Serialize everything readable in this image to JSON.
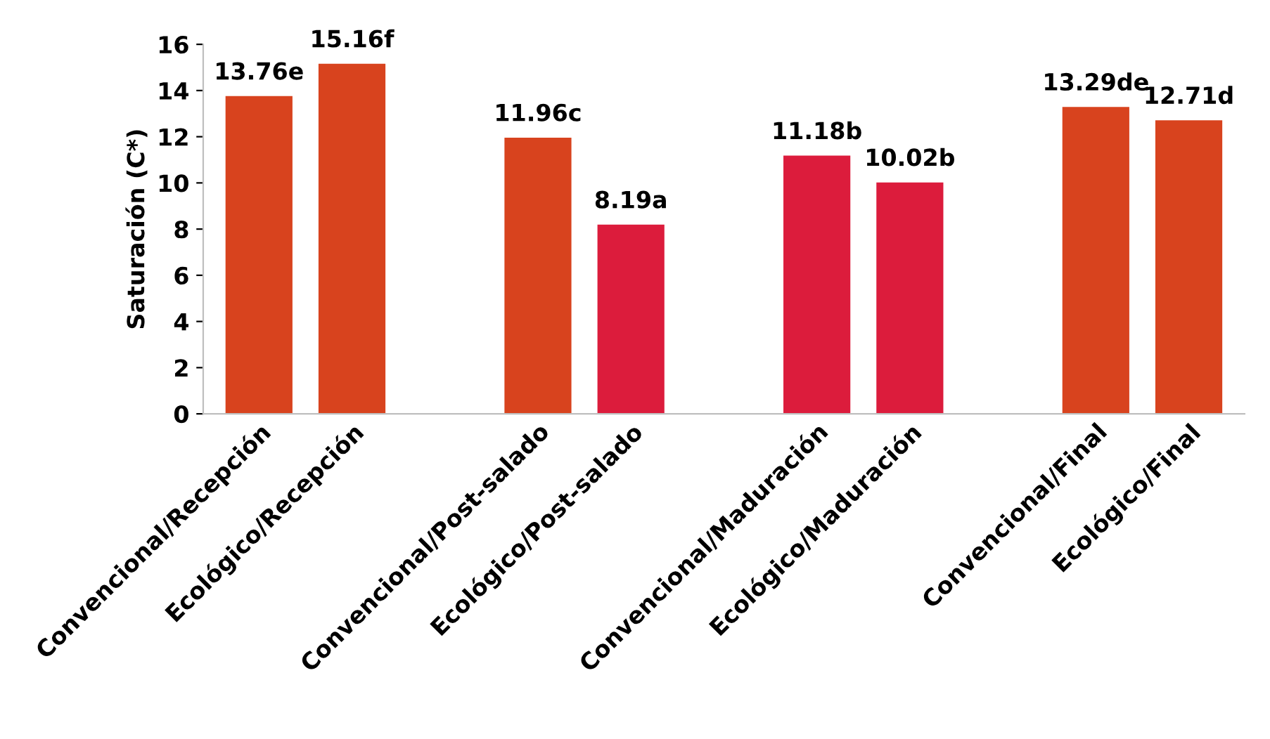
{
  "chart_data": {
    "type": "bar",
    "ylabel": "Saturación (C*)",
    "categories": [
      "Convencional/Recepción",
      "Ecológico/Recepción",
      null,
      "Convencional/Post-salado",
      "Ecológico/Post-salado",
      null,
      "Convencional/Maduración",
      "Ecológico/Maduración",
      null,
      "Convencional/Final",
      "Ecológico/Final"
    ],
    "values": [
      13.76,
      15.16,
      null,
      11.96,
      8.19,
      null,
      11.18,
      10.02,
      null,
      13.29,
      12.71
    ],
    "colors": [
      "#d8431e",
      "#d8431e",
      null,
      "#d8431e",
      "#dc1c3c",
      null,
      "#dc1c3c",
      "#dc1c3c",
      null,
      "#d8431e",
      "#d8431e"
    ],
    "value_labels": [
      "13.76e",
      "15.16f",
      null,
      "11.96c",
      "8.19a",
      null,
      "11.18b",
      "10.02b",
      null,
      "13.29de",
      "12.71d"
    ],
    "ylim": [
      0,
      16
    ],
    "yticks": [
      0,
      2,
      4,
      6,
      8,
      10,
      12,
      14,
      16
    ],
    "grid": false
  }
}
